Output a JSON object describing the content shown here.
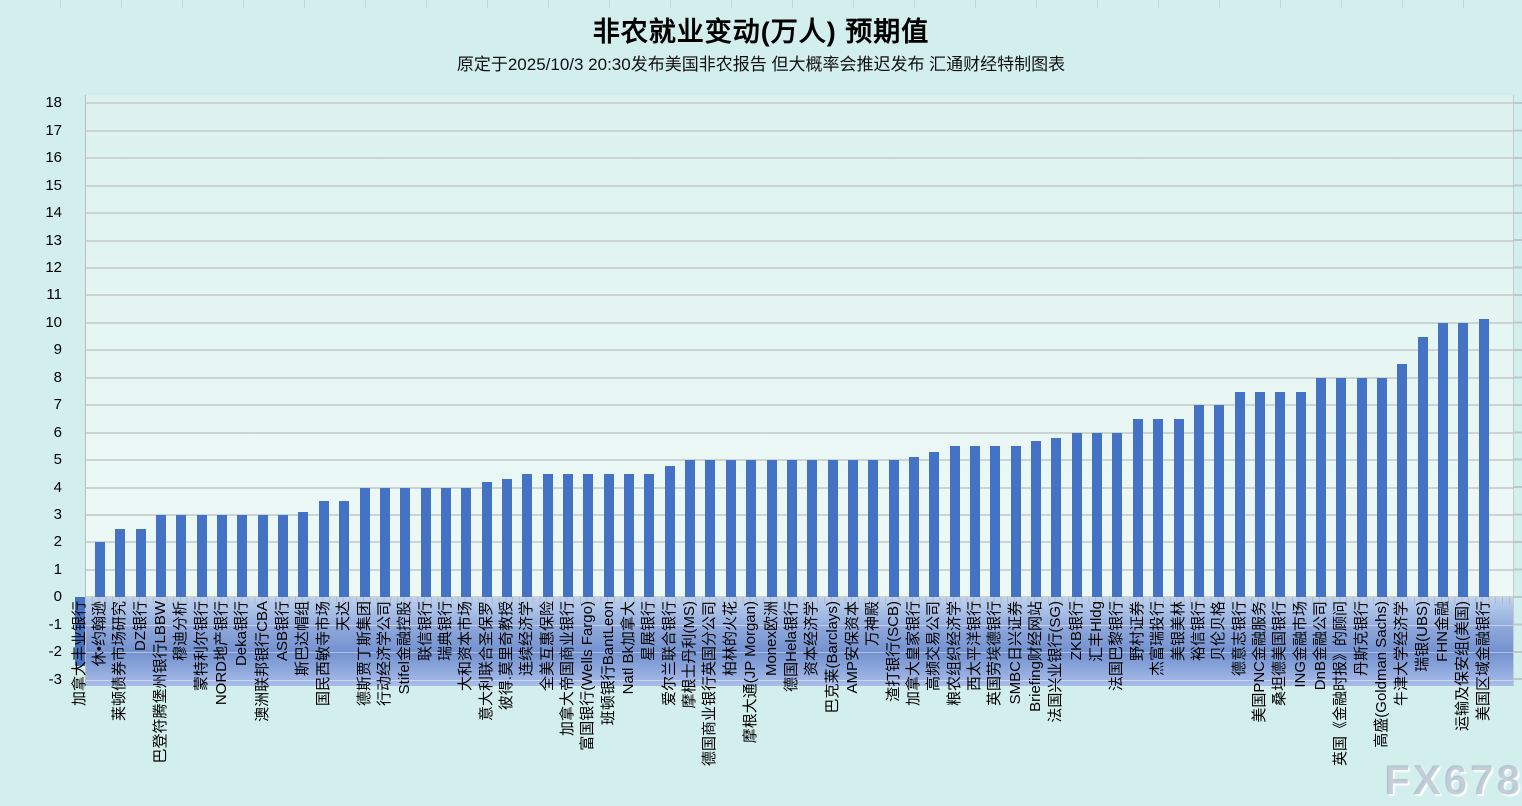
{
  "header": {
    "title": "非农就业变动(万人) 预期值",
    "subtitle": "原定于2025/10/3 20:30发布美国非农报告 但大概率会推迟发布 汇通财经特制图表"
  },
  "watermark": "FX678",
  "colors": {
    "page_bg": "#d3efed",
    "plot_bg": "#e9f7f4",
    "gridline": "#ccd3d5",
    "bar": "#4472C4",
    "negative_band_top": "#bdd1ee",
    "negative_band_mid": "#7291cf",
    "negative_band_bottom": "#a9bde8",
    "watermark": "#a3b0c0"
  },
  "chart_data": {
    "type": "bar",
    "title": "非农就业变动(万人) 预期值",
    "subtitle": "原定于2025/10/3 20:30发布美国非农报告 但大概率会推迟发布 汇通财经特制图表",
    "xlabel": "",
    "ylabel": "",
    "ylim": [
      -3,
      18
    ],
    "yticks": [
      -3,
      -2,
      -1,
      0,
      1,
      2,
      3,
      4,
      5,
      6,
      7,
      8,
      9,
      10,
      11,
      12,
      13,
      14,
      15,
      16,
      17,
      18
    ],
    "grid": true,
    "legend": false,
    "bar_color": "#4472C4",
    "categories": [
      "加拿大丰业银行",
      "休•约翰逊",
      "莱顿债券市场研究",
      "DZ银行",
      "巴登符腾堡州银行LBBW",
      "穆迪分析",
      "蒙特利尔银行",
      "NORD地产银行",
      "Deka银行",
      "澳洲联邦银行CBA",
      "ASB银行",
      "斯巴达帽组",
      "国民西敏寺市场",
      "天达",
      "德斯贾丁斯集团",
      "行动经济学公司",
      "Stifel金融控股",
      "联信银行",
      "瑞典银行",
      "大和资本市场",
      "意大利联合圣保罗",
      "彼得.莫里奇教授",
      "连续经济学",
      "全美互惠保险",
      "加拿大帝国商业银行",
      "富国银行(Wells Fargo)",
      "班顿银行BantLeon",
      "Natl Bk加拿大",
      "星展银行",
      "爱尔兰联合银行",
      "摩根士丹利(MS)",
      "德国商业银行英国分公司",
      "柏林的火花",
      "摩根大通(JP Morgan)",
      "Monex欧洲",
      "德国Hela银行",
      "资本经济学",
      "巴克莱(Barclays)",
      "AMP安保资本",
      "万神殿",
      "渣打银行(SCB)",
      "加拿大皇家银行",
      "高频交易公司",
      "粮农组织经济学",
      "西太平洋银行",
      "英国劳埃德银行",
      "SMBC日兴证券",
      "Briefing财经网站",
      "法国兴业银行(SG)",
      "ZKB银行",
      "汇丰Hldg",
      "法国巴黎银行",
      "野村证券",
      "杰富瑞投行",
      "美银美林",
      "裕信银行",
      "贝伦贝格",
      "德意志银行",
      "美国PNC金融服务",
      "桑坦德美国银行",
      "ING金融市场",
      "DnB金融公司",
      "英国《金融时报》的顾问",
      "丹斯克银行",
      "高盛(Goldman Sachs)",
      "牛津大学经济学",
      "瑞银(UBS)",
      "FHN金融",
      "运输及保安组(美国)",
      "美国区域金融银行"
    ],
    "values": [
      -2.5,
      2,
      2.5,
      2.5,
      3,
      3,
      3,
      3,
      3,
      3,
      3,
      3.1,
      3.5,
      3.5,
      4,
      4,
      4,
      4,
      4,
      4,
      4.2,
      4.3,
      4.5,
      4.5,
      4.5,
      4.5,
      4.5,
      4.5,
      4.5,
      4.8,
      5,
      5,
      5,
      5,
      5,
      5,
      5,
      5,
      5,
      5,
      5,
      5.1,
      5.3,
      5.5,
      5.5,
      5.5,
      5.5,
      5.7,
      5.8,
      6,
      6,
      6,
      6.5,
      6.5,
      6.5,
      7,
      7,
      7.5,
      7.5,
      7.5,
      7.5,
      8,
      8,
      8,
      8,
      8.5,
      9.5,
      10,
      10,
      10.15
    ]
  }
}
